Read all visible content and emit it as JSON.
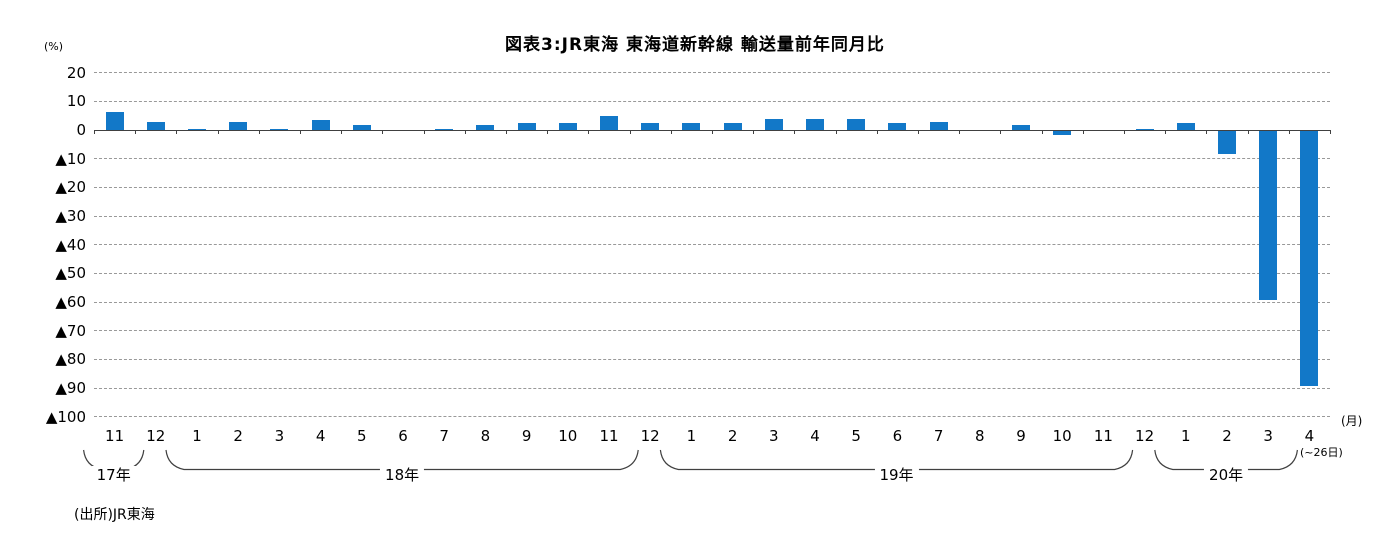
{
  "header": {
    "title": "図表3:JR東海 東海道新幹線 輸送量前年同月比"
  },
  "source_note": "(出所)JR東海",
  "colors": {
    "bar": "#1278C8",
    "gridline": "#999999",
    "zero_axis": "#404040",
    "background": "#FFFFFF",
    "text": "#000000"
  },
  "chart_data": {
    "type": "bar",
    "title": "図表3:JR東海 東海道新幹線 輸送量前年同月比",
    "ylabel": "(%)",
    "xlabel": "(月)",
    "ylim": [
      -100,
      20
    ],
    "ytick_interval": 10,
    "ytick_labels": [
      "20",
      "10",
      "0",
      "▲10",
      "▲20",
      "▲30",
      "▲40",
      "▲50",
      "▲60",
      "▲70",
      "▲80",
      "▲90",
      "▲100"
    ],
    "grid": "horizontal dashed gridlines every 10, solid line at 0",
    "legend": "none",
    "negative_number_notation": "▲ prefix means negative",
    "categories": [
      "11",
      "12",
      "1",
      "2",
      "3",
      "4",
      "5",
      "6",
      "7",
      "8",
      "9",
      "10",
      "11",
      "12",
      "1",
      "2",
      "3",
      "4",
      "5",
      "6",
      "7",
      "8",
      "9",
      "10",
      "11",
      "12",
      "1",
      "2",
      "3",
      "4"
    ],
    "values": [
      6.4,
      2.8,
      0.5,
      2.8,
      0.5,
      3.5,
      1.9,
      0.0,
      0.5,
      1.9,
      2.6,
      2.6,
      4.8,
      2.6,
      2.6,
      2.6,
      3.7,
      3.7,
      3.8,
      2.6,
      2.8,
      0.0,
      1.7,
      -1.3,
      0.0,
      0.5,
      2.6,
      -8.1,
      -59.0,
      -89.0
    ],
    "year_groups": [
      {
        "label": "17年",
        "start": 0,
        "end": 1
      },
      {
        "label": "18年",
        "start": 2,
        "end": 13
      },
      {
        "label": "19年",
        "start": 14,
        "end": 25
      },
      {
        "label": "20年",
        "start": 26,
        "end": 29
      }
    ],
    "last_month_note": "(~26日)"
  }
}
